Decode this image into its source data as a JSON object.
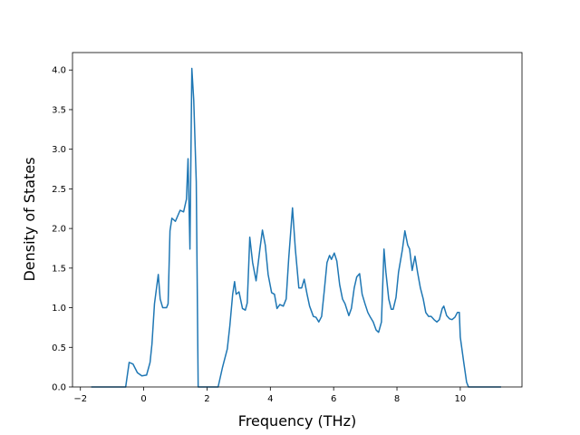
{
  "chart_data": {
    "type": "line",
    "x_label": "Frequency (THz)",
    "y_label": "Density of States",
    "x": [
      -1.66,
      -0.57,
      -0.46,
      -0.34,
      -0.2,
      -0.06,
      0.09,
      0.2,
      0.26,
      0.34,
      0.46,
      0.52,
      0.6,
      0.72,
      0.77,
      0.83,
      0.89,
      1.0,
      1.15,
      1.26,
      1.35,
      1.4,
      1.46,
      1.52,
      1.58,
      1.66,
      1.72,
      2.35,
      2.49,
      2.64,
      2.72,
      2.81,
      2.87,
      2.92,
      3.01,
      3.12,
      3.21,
      3.27,
      3.32,
      3.35,
      3.44,
      3.55,
      3.67,
      3.75,
      3.84,
      3.93,
      4.04,
      4.13,
      4.21,
      4.3,
      4.41,
      4.5,
      4.58,
      4.7,
      4.79,
      4.9,
      4.99,
      5.07,
      5.16,
      5.24,
      5.36,
      5.44,
      5.53,
      5.62,
      5.7,
      5.79,
      5.87,
      5.93,
      6.02,
      6.1,
      6.19,
      6.28,
      6.36,
      6.48,
      6.56,
      6.65,
      6.73,
      6.82,
      6.9,
      6.99,
      7.08,
      7.16,
      7.25,
      7.34,
      7.42,
      7.51,
      7.59,
      7.65,
      7.74,
      7.82,
      7.88,
      7.97,
      8.05,
      8.17,
      8.25,
      8.34,
      8.4,
      8.48,
      8.57,
      8.65,
      8.74,
      8.83,
      8.91,
      9.0,
      9.08,
      9.17,
      9.26,
      9.34,
      9.43,
      9.48,
      9.57,
      9.66,
      9.74,
      9.83,
      9.91,
      9.97,
      10.0,
      10.11,
      10.2,
      10.26,
      11.29
    ],
    "values": [
      0,
      0,
      0.31,
      0.29,
      0.18,
      0.14,
      0.15,
      0.31,
      0.54,
      1.05,
      1.42,
      1.11,
      1.0,
      1.0,
      1.05,
      1.97,
      2.13,
      2.09,
      2.23,
      2.21,
      2.37,
      2.88,
      1.74,
      4.02,
      3.62,
      2.59,
      0,
      0,
      0.25,
      0.48,
      0.77,
      1.17,
      1.33,
      1.17,
      1.2,
      0.99,
      0.97,
      1.06,
      1.57,
      1.89,
      1.57,
      1.34,
      1.74,
      1.98,
      1.79,
      1.42,
      1.19,
      1.17,
      0.99,
      1.04,
      1.02,
      1.11,
      1.62,
      2.26,
      1.74,
      1.25,
      1.25,
      1.36,
      1.17,
      1.02,
      0.89,
      0.88,
      0.82,
      0.89,
      1.2,
      1.57,
      1.66,
      1.61,
      1.69,
      1.59,
      1.29,
      1.11,
      1.05,
      0.9,
      0.99,
      1.25,
      1.39,
      1.43,
      1.17,
      1.05,
      0.94,
      0.88,
      0.82,
      0.72,
      0.69,
      0.82,
      1.74,
      1.45,
      1.11,
      0.98,
      0.98,
      1.13,
      1.45,
      1.73,
      1.97,
      1.79,
      1.74,
      1.47,
      1.65,
      1.45,
      1.25,
      1.11,
      0.94,
      0.89,
      0.89,
      0.85,
      0.82,
      0.85,
      0.99,
      1.02,
      0.9,
      0.86,
      0.85,
      0.88,
      0.94,
      0.94,
      0.63,
      0.31,
      0.06,
      0,
      0
    ],
    "color": "#1f77b4",
    "xlim": [
      -2.25,
      11.95
    ],
    "xticks": [
      {
        "value": -2,
        "label": "−2"
      },
      0,
      2,
      4,
      6,
      8,
      10
    ],
    "ylim": [
      0,
      4.22
    ],
    "yticks": [
      {
        "value": 0,
        "label": "0.0"
      },
      {
        "value": 0.5,
        "label": "0.5"
      },
      {
        "value": 1,
        "label": "1.0"
      },
      {
        "value": 1.5,
        "label": "1.5"
      },
      {
        "value": 2,
        "label": "2.0"
      },
      {
        "value": 2.5,
        "label": "2.5"
      },
      {
        "value": 3,
        "label": "3.0"
      },
      {
        "value": 3.5,
        "label": "3.5"
      },
      {
        "value": 4,
        "label": "4.0"
      }
    ]
  }
}
